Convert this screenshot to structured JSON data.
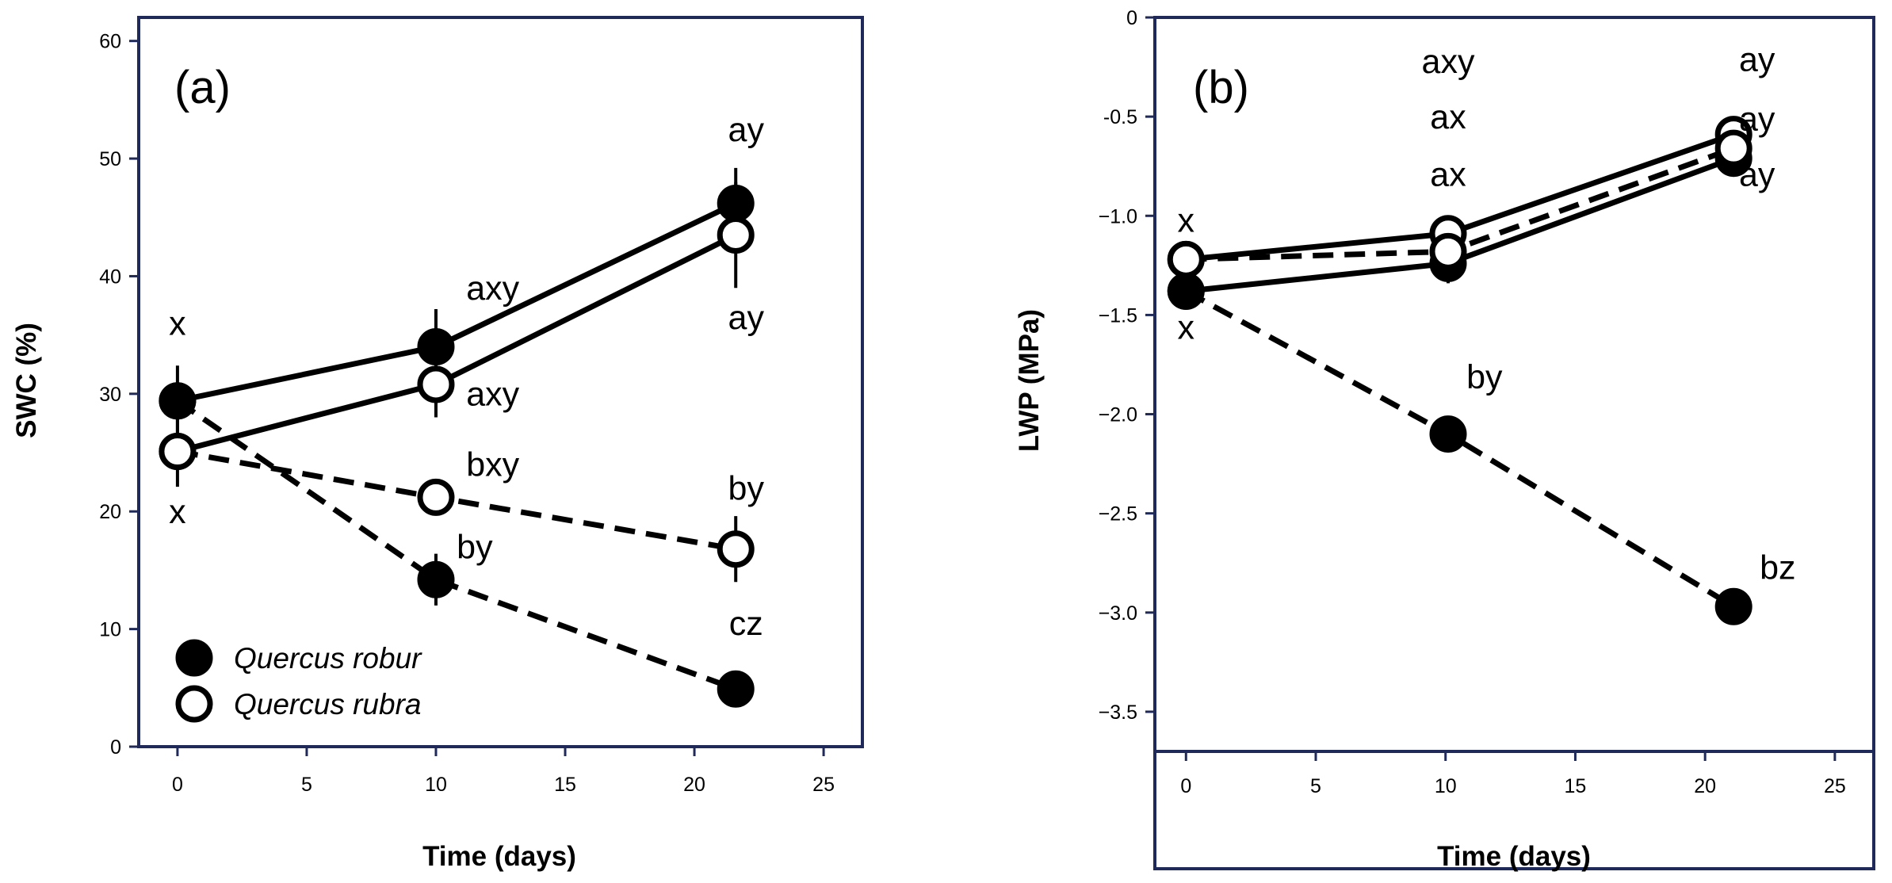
{
  "colors": {
    "axis": "#1f2a5a",
    "filled_marker": "#000000",
    "open_marker": "#ffffff"
  },
  "chart_data": [
    {
      "type": "line",
      "panel": "(a)",
      "xlabel": "Time (days)",
      "ylabel": "SWC (%)",
      "xlim": [
        -1.5,
        26.5
      ],
      "ylim": [
        0,
        62
      ],
      "xticks": [
        0,
        5,
        10,
        15,
        20,
        25
      ],
      "yticks": [
        0,
        10,
        20,
        30,
        40,
        50,
        60
      ],
      "legend": {
        "placement": "bottom-left",
        "entries": [
          {
            "label": "Quercus robur",
            "marker": "filled"
          },
          {
            "label": "Quercus rubra",
            "marker": "open"
          }
        ]
      },
      "series": [
        {
          "name": "Quercus robur control",
          "marker": "filled",
          "linestyle": "solid",
          "x": [
            0,
            10,
            21.6
          ],
          "y": [
            29.4,
            34.0,
            46.2
          ],
          "err": [
            3.0,
            3.2,
            3.0
          ]
        },
        {
          "name": "Quercus rubra control",
          "marker": "open",
          "linestyle": "solid",
          "x": [
            0,
            10,
            21.6
          ],
          "y": [
            25.1,
            30.8,
            43.5
          ],
          "err": [
            3.0,
            2.8,
            4.5
          ]
        },
        {
          "name": "Quercus rubra drought",
          "marker": "open",
          "linestyle": "dashed",
          "x": [
            0,
            10,
            21.6
          ],
          "y": [
            25.1,
            21.2,
            16.8
          ],
          "err": [
            1.5,
            1.5,
            2.8
          ]
        },
        {
          "name": "Quercus robur drought",
          "marker": "filled",
          "linestyle": "dashed",
          "x": [
            0,
            10,
            21.6
          ],
          "y": [
            29.4,
            14.2,
            4.9
          ],
          "err": [
            1.5,
            2.2,
            0.8
          ]
        }
      ],
      "annotations": [
        {
          "text": "x",
          "x": 0,
          "y": 35.0
        },
        {
          "text": "x",
          "x": 0,
          "y": 19.0
        },
        {
          "text": "axy",
          "x": 12.2,
          "y": 38.0
        },
        {
          "text": "axy",
          "x": 12.2,
          "y": 29.0
        },
        {
          "text": "bxy",
          "x": 12.2,
          "y": 23.0
        },
        {
          "text": "by",
          "x": 11.5,
          "y": 16.0
        },
        {
          "text": "ay",
          "x": 22.0,
          "y": 51.5
        },
        {
          "text": "ay",
          "x": 22.0,
          "y": 35.5
        },
        {
          "text": "by",
          "x": 22.0,
          "y": 21.0
        },
        {
          "text": "cz",
          "x": 22.0,
          "y": 9.5
        }
      ]
    },
    {
      "type": "line",
      "panel": "(b)",
      "xlabel": "Time (days)",
      "ylabel": "LWP (MPa)",
      "xlim": [
        -1.2,
        26.5
      ],
      "ylim": [
        -3.7,
        0
      ],
      "xticks": [
        0,
        5,
        10,
        15,
        20,
        25
      ],
      "yticks": [
        0,
        -0.5,
        -1.0,
        -1.5,
        -2.0,
        -2.5,
        -3.0,
        -3.5
      ],
      "ytick_labels": [
        "0",
        "-0.5",
        "−1.0",
        "−1.5",
        "−2.0",
        "−2.5",
        "−3.0",
        "−3.5"
      ],
      "series": [
        {
          "name": "Quercus robur control",
          "marker": "filled",
          "linestyle": "solid",
          "x": [
            0,
            10.1,
            21.1
          ],
          "y": [
            -1.38,
            -1.24,
            -0.71
          ],
          "err": [
            0.05,
            0.1,
            0.08
          ]
        },
        {
          "name": "Quercus rubra control",
          "marker": "open",
          "linestyle": "solid",
          "x": [
            0,
            10.1,
            21.1
          ],
          "y": [
            -1.22,
            -1.09,
            -0.59
          ],
          "err": [
            0.05,
            0.08,
            0.05
          ]
        },
        {
          "name": "Quercus rubra drought",
          "marker": "open",
          "linestyle": "dashed",
          "x": [
            0,
            10.1,
            21.1
          ],
          "y": [
            -1.22,
            -1.18,
            -0.66
          ],
          "err": [
            0.05,
            0.05,
            0.05
          ]
        },
        {
          "name": "Quercus robur drought",
          "marker": "filled",
          "linestyle": "dashed",
          "x": [
            0,
            10.1,
            21.1
          ],
          "y": [
            -1.38,
            -2.1,
            -2.97
          ],
          "err": [
            0.03,
            0.03,
            0.03
          ]
        }
      ],
      "annotations": [
        {
          "text": "x",
          "x": 0,
          "y": -1.08
        },
        {
          "text": "x",
          "x": 0,
          "y": -1.62
        },
        {
          "text": "axy",
          "x": 10.1,
          "y": -0.28
        },
        {
          "text": "ax",
          "x": 10.1,
          "y": -0.56
        },
        {
          "text": "ax",
          "x": 10.1,
          "y": -0.85
        },
        {
          "text": "by",
          "x": 11.5,
          "y": -1.87
        },
        {
          "text": "ay",
          "x": 22.0,
          "y": -0.27
        },
        {
          "text": "ay",
          "x": 22.0,
          "y": -0.57
        },
        {
          "text": "ay",
          "x": 22.0,
          "y": -0.85
        },
        {
          "text": "bz",
          "x": 22.8,
          "y": -2.83
        }
      ]
    }
  ]
}
